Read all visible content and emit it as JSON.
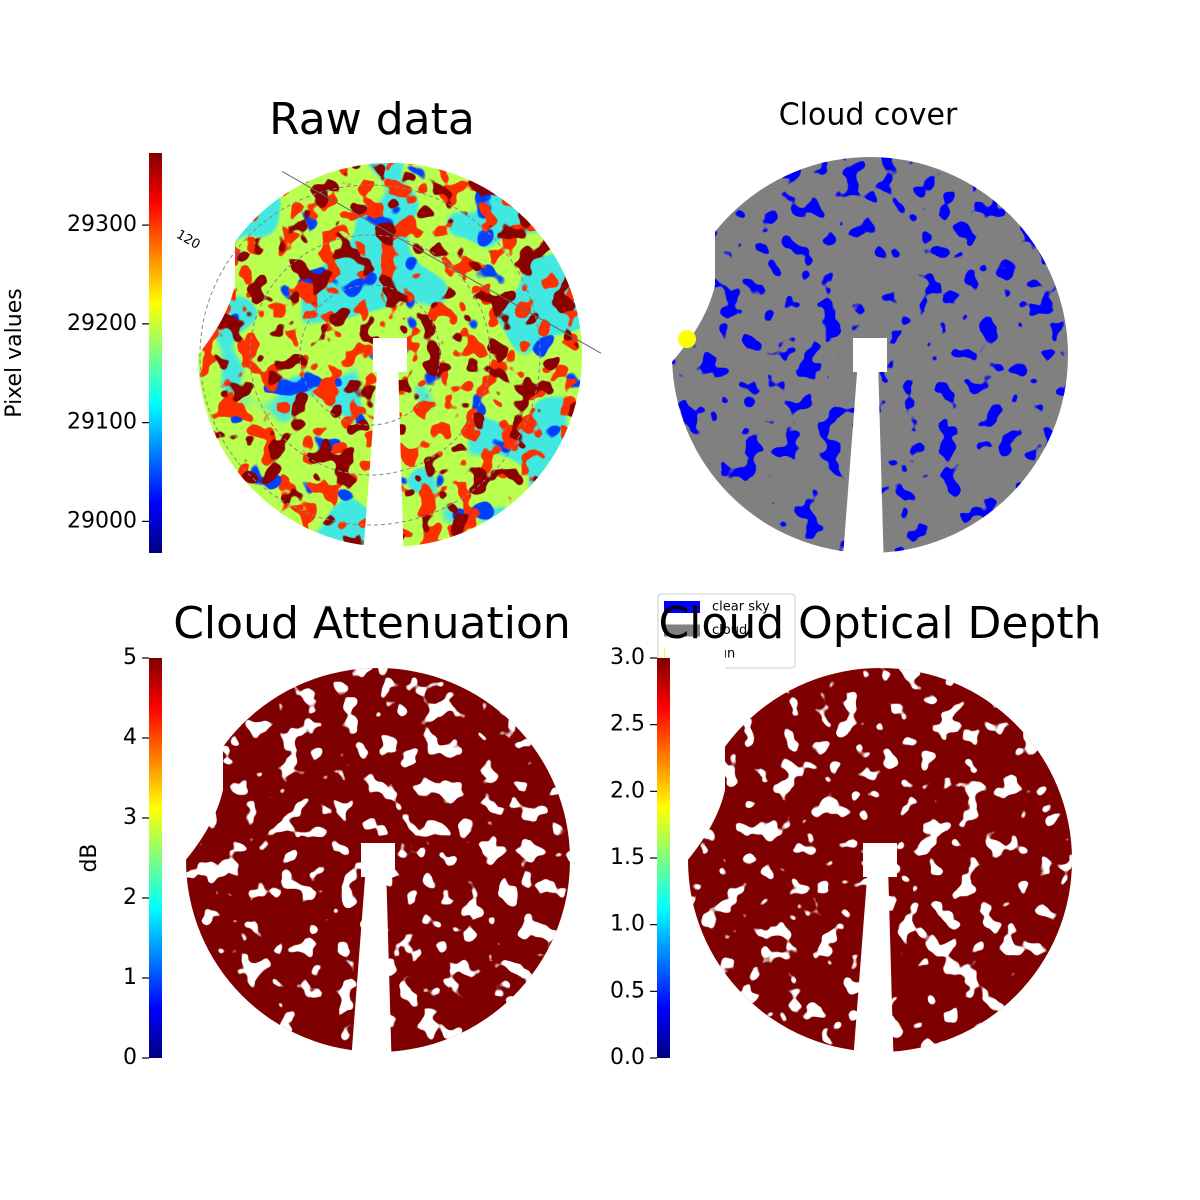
{
  "chart_data": [
    {
      "type": "image",
      "title": "Raw data",
      "colorbar": {
        "label": "Pixel values",
        "colormap": "jet",
        "lim": [
          28968,
          29373
        ],
        "ticks": [
          29000,
          29100,
          29200,
          29300
        ]
      },
      "annotations": [
        "120"
      ]
    },
    {
      "type": "image",
      "title": "Cloud cover",
      "legend": [
        {
          "name": "clear sky",
          "color": "#0000ff"
        },
        {
          "name": "cloud",
          "color": "#808080"
        },
        {
          "name": "sun",
          "color": "#ffff00"
        }
      ]
    },
    {
      "type": "image",
      "title": "Cloud Attenuation",
      "colorbar": {
        "label": "dB",
        "colormap": "jet",
        "lim": [
          0,
          5
        ],
        "ticks": [
          0,
          1,
          2,
          3,
          4,
          5
        ]
      }
    },
    {
      "type": "image",
      "title": "Cloud Optical Depth",
      "colorbar": {
        "colormap": "jet",
        "lim": [
          0,
          3
        ],
        "ticks": [
          {
            "value": 0,
            "label": "0.0"
          },
          {
            "value": 0.5,
            "label": "0.5"
          },
          {
            "value": 1,
            "label": "1.0"
          },
          {
            "value": 1.5,
            "label": "1.5"
          },
          {
            "value": 2,
            "label": "2.0"
          },
          {
            "value": 2.5,
            "label": "2.5"
          },
          {
            "value": 3,
            "label": "3.0"
          }
        ]
      }
    }
  ]
}
